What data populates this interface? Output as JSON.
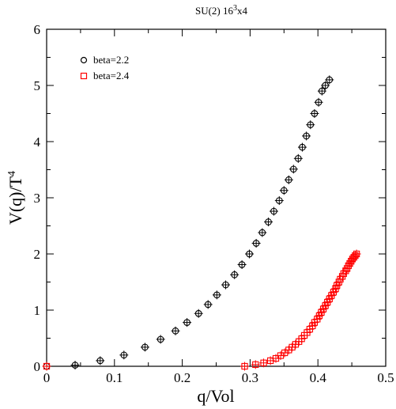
{
  "chart_data": {
    "type": "scatter",
    "title": "SU(2) 16",
    "title_sup": "3",
    "title_suffix": "x4",
    "xlabel": "q/Vol",
    "ylabel": "V(q)/T",
    "ylabel_sup": "4",
    "xlim": [
      0,
      0.5
    ],
    "ylim": [
      0,
      6
    ],
    "xticks": [
      0,
      0.1,
      0.2,
      0.3,
      0.4,
      0.5
    ],
    "xtick_labels": [
      "0",
      "0.1",
      "0.2",
      "0.3",
      "0.4",
      "0.5"
    ],
    "yticks": [
      0,
      1,
      2,
      3,
      4,
      5,
      6
    ],
    "ytick_labels": [
      "0",
      "1",
      "2",
      "3",
      "4",
      "5",
      "6"
    ],
    "grid": false,
    "legend_position": "top-left",
    "series": [
      {
        "name": "beta=2.2",
        "marker": "circle",
        "color": "#000000",
        "x": [
          0.0,
          0.042,
          0.079,
          0.114,
          0.145,
          0.168,
          0.19,
          0.207,
          0.224,
          0.238,
          0.251,
          0.264,
          0.277,
          0.288,
          0.299,
          0.309,
          0.318,
          0.327,
          0.335,
          0.343,
          0.35,
          0.357,
          0.364,
          0.371,
          0.377,
          0.383,
          0.389,
          0.395,
          0.401,
          0.406,
          0.411,
          0.417
        ],
        "y": [
          0.0,
          0.02,
          0.1,
          0.2,
          0.34,
          0.48,
          0.63,
          0.78,
          0.94,
          1.1,
          1.27,
          1.45,
          1.63,
          1.81,
          2.0,
          2.19,
          2.38,
          2.57,
          2.76,
          2.95,
          3.13,
          3.32,
          3.51,
          3.7,
          3.9,
          4.1,
          4.3,
          4.5,
          4.7,
          4.9,
          5.0,
          5.1
        ]
      },
      {
        "name": "beta=2.4",
        "marker": "square",
        "color": "#ff0000",
        "x": [
          0.0,
          0.292,
          0.308,
          0.32,
          0.33,
          0.338,
          0.345,
          0.351,
          0.357,
          0.362,
          0.367,
          0.372,
          0.376,
          0.38,
          0.384,
          0.388,
          0.392,
          0.395,
          0.399,
          0.402,
          0.405,
          0.408,
          0.411,
          0.414,
          0.417,
          0.42,
          0.423,
          0.426,
          0.428,
          0.431,
          0.433,
          0.436,
          0.438,
          0.441,
          0.443,
          0.445,
          0.447,
          0.449,
          0.451,
          0.453,
          0.455,
          0.457
        ],
        "y": [
          0.0,
          0.0,
          0.03,
          0.06,
          0.1,
          0.14,
          0.19,
          0.24,
          0.29,
          0.34,
          0.39,
          0.44,
          0.49,
          0.55,
          0.6,
          0.66,
          0.72,
          0.78,
          0.84,
          0.9,
          0.96,
          1.02,
          1.08,
          1.14,
          1.2,
          1.26,
          1.32,
          1.38,
          1.44,
          1.5,
          1.55,
          1.6,
          1.65,
          1.7,
          1.74,
          1.79,
          1.83,
          1.87,
          1.91,
          1.94,
          1.97,
          2.0
        ]
      }
    ]
  }
}
